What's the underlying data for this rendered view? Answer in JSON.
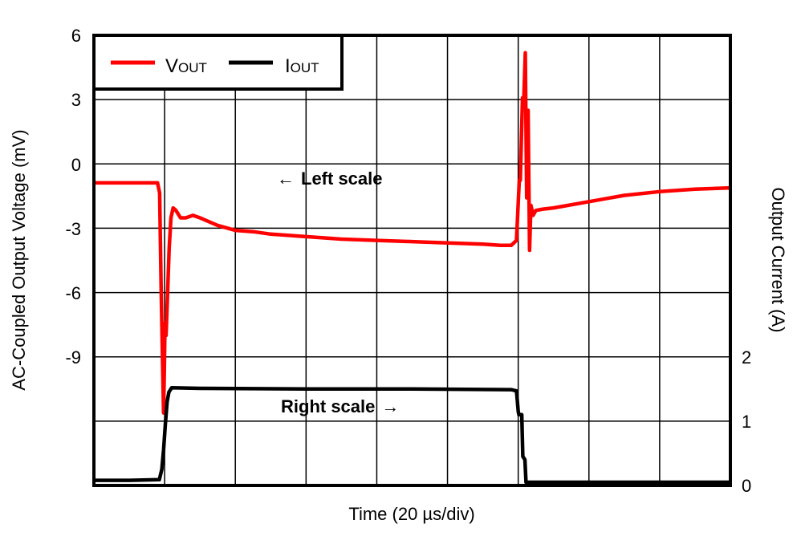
{
  "chart_data": {
    "type": "line",
    "title": "",
    "xlabel": "Time (20 µs/div)",
    "ylabel_left": "AC-Coupled Output Voltage (mV)",
    "ylabel_right": "Output Current (A)",
    "x_units": "µs",
    "x_per_div": 20,
    "xlim": [
      0,
      180
    ],
    "ylim_left": [
      -12,
      6
    ],
    "ylim_right": [
      0,
      7
    ],
    "left_ticks": [
      "6",
      "3",
      "0",
      "-3",
      "-6",
      "-9"
    ],
    "left_tick_values": [
      6,
      3,
      0,
      -3,
      -6,
      -9
    ],
    "right_ticks": [
      "2",
      "1",
      "0"
    ],
    "right_tick_values": [
      2,
      1,
      0
    ],
    "grid": true,
    "x_divisions": 9,
    "y_divisions": 7,
    "legend": {
      "position": "top-left",
      "entries": [
        {
          "main": "V",
          "sub": "OUT",
          "color": "#ff0000"
        },
        {
          "main": "I",
          "sub": "OUT",
          "color": "#000000"
        }
      ]
    },
    "annotations": [
      {
        "text": "Left scale",
        "arrow": "←",
        "arrow_side": "left"
      },
      {
        "text": "Right scale",
        "arrow": "→",
        "arrow_side": "right"
      }
    ],
    "series": [
      {
        "name": "VOUT",
        "axis": "left",
        "units": "mV",
        "color": "#ff0000",
        "x": [
          0,
          5,
          10,
          15,
          18,
          18.6,
          19,
          19.4,
          19.7,
          19.9,
          20.1,
          20.4,
          20.8,
          21.3,
          21.8,
          22.4,
          23.2,
          24.5,
          26,
          28,
          30,
          35,
          40,
          45,
          50,
          60,
          70,
          80,
          90,
          100,
          110,
          115,
          118,
          119.5,
          120.3,
          120.6,
          121.2,
          121.6,
          122.0,
          122.4,
          122.8,
          123.2,
          123.6,
          124.2,
          125,
          127,
          130,
          140,
          150,
          160,
          170,
          180
        ],
        "values": [
          0.1,
          0.1,
          0.1,
          0.1,
          0.1,
          -0.3,
          -4,
          -7,
          -9.1,
          -7.5,
          -5.5,
          -6,
          -4.5,
          -2.5,
          -1.3,
          -0.9,
          -1.0,
          -1.3,
          -1.3,
          -1.2,
          -1.3,
          -1.6,
          -1.8,
          -1.85,
          -1.95,
          -2.05,
          -2.15,
          -2.2,
          -2.25,
          -2.3,
          -2.35,
          -2.4,
          -2.4,
          -2.2,
          0.2,
          0.2,
          3.5,
          3.5,
          5.3,
          -0.5,
          3.0,
          -2.6,
          -0.8,
          -1.2,
          -1.0,
          -0.95,
          -0.9,
          -0.65,
          -0.4,
          -0.25,
          -0.15,
          -0.1
        ]
      },
      {
        "name": "IOUT",
        "axis": "right",
        "units": "A",
        "color": "#000000",
        "x": [
          0,
          10,
          18.5,
          19.2,
          19.7,
          20.2,
          20.7,
          21.2,
          22,
          30,
          60,
          90,
          118,
          119.5,
          120,
          120.2,
          121,
          121.3,
          121.9,
          122.2,
          130,
          150,
          180
        ],
        "values": [
          0.08,
          0.08,
          0.09,
          0.25,
          0.55,
          0.95,
          1.3,
          1.45,
          1.52,
          1.51,
          1.5,
          1.5,
          1.49,
          1.47,
          1.15,
          1.1,
          1.1,
          0.45,
          0.4,
          0.05,
          0.05,
          0.05,
          0.05
        ]
      }
    ]
  }
}
